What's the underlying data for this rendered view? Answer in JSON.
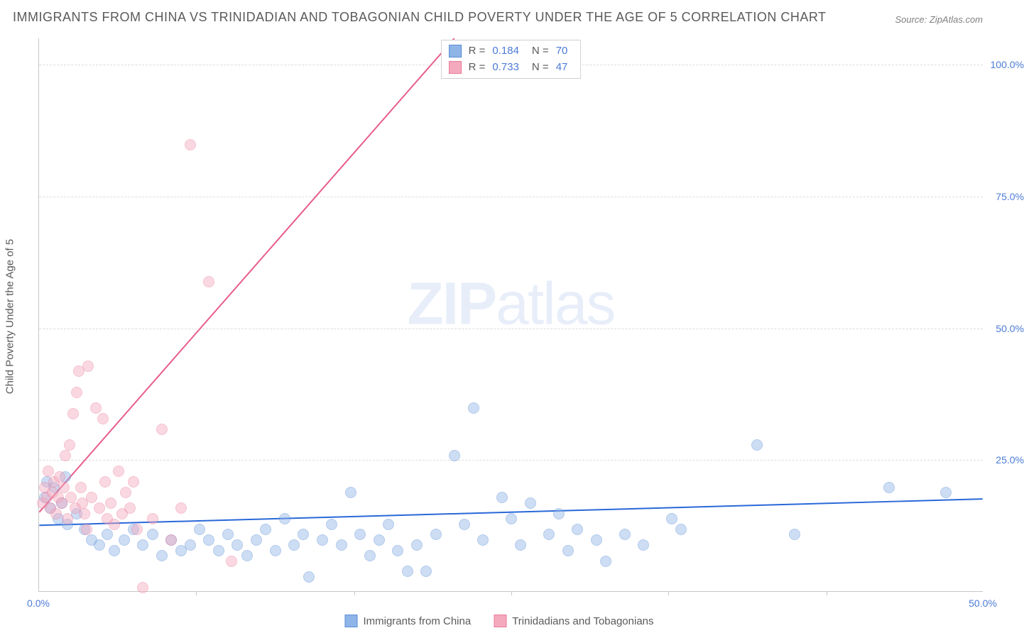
{
  "title": "IMMIGRANTS FROM CHINA VS TRINIDADIAN AND TOBAGONIAN CHILD POVERTY UNDER THE AGE OF 5 CORRELATION CHART",
  "source_label": "Source: ZipAtlas.com",
  "watermark_zip": "ZIP",
  "watermark_atlas": "atlas",
  "ylabel": "Child Poverty Under the Age of 5",
  "chart": {
    "type": "scatter",
    "background_color": "#ffffff",
    "grid_color": "#dcdcdc",
    "axis_color": "#c8c8c8",
    "tick_color": "#4b7bd6",
    "text_color": "#5a5a5a",
    "xlim": [
      0,
      50
    ],
    "ylim": [
      0,
      105
    ],
    "yticks": [
      25,
      50,
      75,
      100
    ],
    "ytick_labels": [
      "25.0%",
      "50.0%",
      "75.0%",
      "100.0%"
    ],
    "xticks": [
      0,
      50
    ],
    "xtick_labels": [
      "0.0%",
      "50.0%"
    ],
    "xtick_marks": [
      8.3,
      16.7,
      25,
      33.3,
      41.7
    ],
    "marker_radius": 8,
    "marker_opacity": 0.45,
    "series": [
      {
        "name": "Immigrants from China",
        "fill": "#8fb5e8",
        "stroke": "#5a8cd4",
        "line_color": "#2968d8",
        "line_width": 2,
        "R": "0.184",
        "N": "70",
        "trend": {
          "x1": 0,
          "y1": 12.5,
          "x2": 50,
          "y2": 17.5
        },
        "points": [
          [
            0.3,
            20
          ],
          [
            0.4,
            23
          ],
          [
            0.6,
            18
          ],
          [
            0.8,
            22
          ],
          [
            1.0,
            16
          ],
          [
            1.2,
            19
          ],
          [
            1.4,
            24
          ],
          [
            1.5,
            15
          ],
          [
            2.0,
            17
          ],
          [
            2.4,
            14
          ],
          [
            2.8,
            12
          ],
          [
            3.2,
            11
          ],
          [
            3.6,
            13
          ],
          [
            4.0,
            10
          ],
          [
            4.5,
            12
          ],
          [
            5.0,
            14
          ],
          [
            5.5,
            11
          ],
          [
            6.0,
            13
          ],
          [
            6.5,
            9
          ],
          [
            7.0,
            12
          ],
          [
            7.5,
            10
          ],
          [
            8.0,
            11
          ],
          [
            8.5,
            14
          ],
          [
            9.0,
            12
          ],
          [
            9.5,
            10
          ],
          [
            10.0,
            13
          ],
          [
            10.5,
            11
          ],
          [
            11.0,
            9
          ],
          [
            11.5,
            12
          ],
          [
            12.0,
            14
          ],
          [
            12.5,
            10
          ],
          [
            13.0,
            16
          ],
          [
            13.5,
            11
          ],
          [
            14.0,
            13
          ],
          [
            14.3,
            5
          ],
          [
            15.0,
            12
          ],
          [
            15.5,
            15
          ],
          [
            16.0,
            11
          ],
          [
            16.5,
            21
          ],
          [
            17.0,
            13
          ],
          [
            17.5,
            9
          ],
          [
            18.0,
            12
          ],
          [
            18.5,
            15
          ],
          [
            19.0,
            10
          ],
          [
            19.5,
            6
          ],
          [
            20.0,
            11
          ],
          [
            20.5,
            6
          ],
          [
            21.0,
            13
          ],
          [
            22.0,
            28
          ],
          [
            22.5,
            15
          ],
          [
            23.0,
            37
          ],
          [
            23.5,
            12
          ],
          [
            24.5,
            20
          ],
          [
            25.0,
            16
          ],
          [
            25.5,
            11
          ],
          [
            26.0,
            19
          ],
          [
            27.0,
            13
          ],
          [
            27.5,
            17
          ],
          [
            28.0,
            10
          ],
          [
            28.5,
            14
          ],
          [
            29.5,
            12
          ],
          [
            30.0,
            8
          ],
          [
            31.0,
            13
          ],
          [
            32.0,
            11
          ],
          [
            33.5,
            16
          ],
          [
            34.0,
            14
          ],
          [
            38.0,
            30
          ],
          [
            40.0,
            13
          ],
          [
            45.0,
            22
          ],
          [
            48.0,
            21
          ]
        ]
      },
      {
        "name": "Trinidadians and Tobagonians",
        "fill": "#f5a9bd",
        "stroke": "#e87a9a",
        "line_color": "#e85d8c",
        "line_width": 2,
        "R": "0.733",
        "N": "47",
        "trend": {
          "x1": 0,
          "y1": 15,
          "x2": 22,
          "y2": 105
        },
        "points": [
          [
            0.2,
            19
          ],
          [
            0.3,
            22
          ],
          [
            0.4,
            20
          ],
          [
            0.5,
            25
          ],
          [
            0.6,
            18
          ],
          [
            0.7,
            21
          ],
          [
            0.8,
            23
          ],
          [
            0.9,
            17
          ],
          [
            1.0,
            20
          ],
          [
            1.1,
            24
          ],
          [
            1.2,
            19
          ],
          [
            1.3,
            22
          ],
          [
            1.4,
            28
          ],
          [
            1.5,
            16
          ],
          [
            1.6,
            30
          ],
          [
            1.7,
            20
          ],
          [
            1.8,
            36
          ],
          [
            1.9,
            18
          ],
          [
            2.0,
            40
          ],
          [
            2.1,
            44
          ],
          [
            2.2,
            22
          ],
          [
            2.3,
            19
          ],
          [
            2.4,
            17
          ],
          [
            2.5,
            14
          ],
          [
            2.6,
            45
          ],
          [
            2.8,
            20
          ],
          [
            3.0,
            37
          ],
          [
            3.2,
            18
          ],
          [
            3.4,
            35
          ],
          [
            3.5,
            23
          ],
          [
            3.6,
            16
          ],
          [
            3.8,
            19
          ],
          [
            4.0,
            15
          ],
          [
            4.2,
            25
          ],
          [
            4.4,
            17
          ],
          [
            4.6,
            21
          ],
          [
            4.8,
            18
          ],
          [
            5.0,
            23
          ],
          [
            5.2,
            14
          ],
          [
            5.5,
            3
          ],
          [
            6.0,
            16
          ],
          [
            6.5,
            33
          ],
          [
            7.0,
            12
          ],
          [
            7.5,
            18
          ],
          [
            8.0,
            87
          ],
          [
            9.0,
            61
          ],
          [
            10.2,
            8
          ]
        ]
      }
    ]
  },
  "legend": {
    "items": [
      {
        "label": "Immigrants from China",
        "fill": "#8fb5e8",
        "stroke": "#5a8cd4"
      },
      {
        "label": "Trinidadians and Tobagonians",
        "fill": "#f5a9bd",
        "stroke": "#e87a9a"
      }
    ]
  }
}
